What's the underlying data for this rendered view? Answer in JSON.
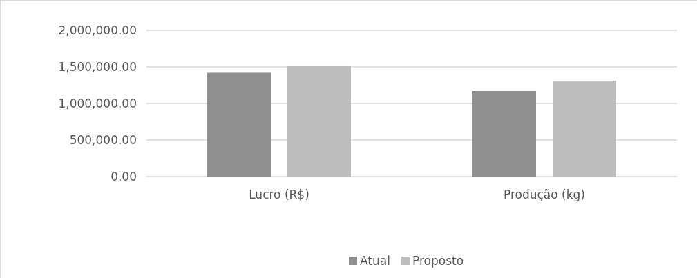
{
  "chart_data": {
    "type": "bar",
    "categories": [
      "Lucro (R$)",
      "Produção (kg)"
    ],
    "series": [
      {
        "name": "Atual",
        "color": "#8f8f8f",
        "values": [
          1420000,
          1170000
        ]
      },
      {
        "name": "Proposto",
        "color": "#bdbdbd",
        "values": [
          1510000,
          1310000
        ]
      }
    ],
    "ylim": [
      0,
      2000000
    ],
    "yticks": [
      {
        "value": 0,
        "label": "0.00"
      },
      {
        "value": 500000,
        "label": "500,000.00"
      },
      {
        "value": 1000000,
        "label": "1,000,000.00"
      },
      {
        "value": 1500000,
        "label": "1,500,000.00"
      },
      {
        "value": 2000000,
        "label": "2,000,000.00"
      }
    ],
    "grid": "y",
    "legend": "bottom"
  }
}
